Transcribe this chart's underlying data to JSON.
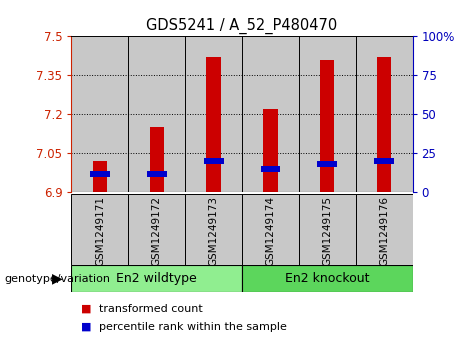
{
  "title": "GDS5241 / A_52_P480470",
  "samples": [
    "GSM1249171",
    "GSM1249172",
    "GSM1249173",
    "GSM1249174",
    "GSM1249175",
    "GSM1249176"
  ],
  "transformed_counts": [
    7.02,
    7.15,
    7.42,
    7.22,
    7.41,
    7.42
  ],
  "percentile_ranks": [
    6.97,
    6.97,
    7.02,
    6.99,
    7.01,
    7.02
  ],
  "baseline": 6.9,
  "ylim_left": [
    6.9,
    7.5
  ],
  "ylim_right": [
    0,
    100
  ],
  "yticks_left": [
    6.9,
    7.05,
    7.2,
    7.35,
    7.5
  ],
  "yticks_right": [
    0,
    25,
    50,
    75,
    100
  ],
  "groups": [
    {
      "label": "En2 wildtype",
      "indices": [
        0,
        1,
        2
      ],
      "color": "#90EE90"
    },
    {
      "label": "En2 knockout",
      "indices": [
        3,
        4,
        5
      ],
      "color": "#5CD65C"
    }
  ],
  "bar_color": "#CC0000",
  "percentile_color": "#0000CC",
  "bar_width": 0.25,
  "bg_color": "#C8C8C8",
  "plot_bg_color": "#FFFFFF",
  "left_axis_color": "#CC2200",
  "right_axis_color": "#0000BB",
  "genotype_label": "genotype/variation",
  "legend_items": [
    {
      "label": "transformed count",
      "color": "#CC0000"
    },
    {
      "label": "percentile rank within the sample",
      "color": "#0000CC"
    }
  ],
  "percentile_bar_height": 0.022,
  "percentile_bar_width": 0.35
}
